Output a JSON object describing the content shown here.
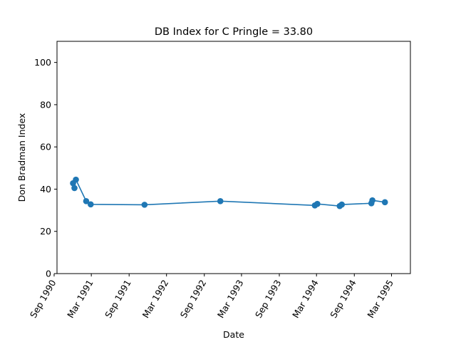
{
  "chart_data": {
    "type": "line",
    "title": "DB Index for C Pringle = 33.80",
    "xlabel": "Date",
    "ylabel": "Don Bradman Index",
    "xlim": [
      "1990-09-15",
      "1995-06-01"
    ],
    "ylim": [
      0,
      110
    ],
    "grid": false,
    "legend": "none",
    "x_ticks": [
      {
        "date": "1990-09-01",
        "label": "Sep 1990"
      },
      {
        "date": "1991-03-01",
        "label": "Mar 1991"
      },
      {
        "date": "1991-09-01",
        "label": "Sep 1991"
      },
      {
        "date": "1992-03-01",
        "label": "Mar 1992"
      },
      {
        "date": "1992-09-01",
        "label": "Sep 1992"
      },
      {
        "date": "1993-03-01",
        "label": "Mar 1993"
      },
      {
        "date": "1993-09-01",
        "label": "Sep 1993"
      },
      {
        "date": "1994-03-01",
        "label": "Mar 1994"
      },
      {
        "date": "1994-09-01",
        "label": "Sep 1994"
      },
      {
        "date": "1995-03-01",
        "label": "Mar 1995"
      }
    ],
    "y_ticks": [
      0,
      20,
      40,
      60,
      80,
      100
    ],
    "series": [
      {
        "color": "#1f77b4",
        "points": [
          {
            "x": "1990-12-02",
            "y": 42.8
          },
          {
            "x": "1990-12-09",
            "y": 40.5
          },
          {
            "x": "1990-12-16",
            "y": 44.5
          },
          {
            "x": "1991-02-04",
            "y": 34.3
          },
          {
            "x": "1991-02-26",
            "y": 32.8
          },
          {
            "x": "1991-11-15",
            "y": 32.6
          },
          {
            "x": "1992-11-18",
            "y": 34.3
          },
          {
            "x": "1994-02-21",
            "y": 32.3
          },
          {
            "x": "1994-03-05",
            "y": 33.0
          },
          {
            "x": "1994-06-22",
            "y": 32.0
          },
          {
            "x": "1994-07-02",
            "y": 32.7
          },
          {
            "x": "1994-11-23",
            "y": 33.3
          },
          {
            "x": "1994-11-28",
            "y": 34.7
          },
          {
            "x": "1995-01-28",
            "y": 33.8
          }
        ]
      }
    ]
  }
}
